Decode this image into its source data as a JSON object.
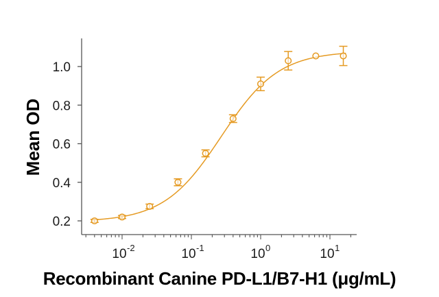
{
  "chart_data": {
    "type": "scatter",
    "title": "",
    "xlabel": "Recombinant Canine PD-L1/B7-H1 (μg/mL)",
    "ylabel": "Mean OD",
    "xscale": "log",
    "xlim": [
      0.0025,
      25
    ],
    "ylim": [
      0.15,
      1.12
    ],
    "x_ticks": [
      0.01,
      0.1,
      1,
      10
    ],
    "x_tick_labels": [
      {
        "base": "10",
        "exp": "-2"
      },
      {
        "base": "10",
        "exp": "-1"
      },
      {
        "base": "10",
        "exp": "0"
      },
      {
        "base": "10",
        "exp": "1"
      }
    ],
    "y_ticks": [
      0.2,
      0.4,
      0.6,
      0.8,
      1.0
    ],
    "y_tick_labels": [
      "0.2",
      "0.4",
      "0.6",
      "0.8",
      "1.0"
    ],
    "grid": false,
    "legend": null,
    "series": [
      {
        "name": "Mean OD",
        "color": "#E59A22",
        "marker": "open-circle",
        "fit": "4-parameter logistic curve",
        "x": [
          0.004,
          0.01,
          0.025,
          0.064,
          0.16,
          0.4,
          1.0,
          2.5,
          6.25,
          15.6
        ],
        "y": [
          0.2,
          0.22,
          0.275,
          0.4,
          0.55,
          0.73,
          0.91,
          1.03,
          1.055,
          1.055
        ],
        "error": [
          0.008,
          0.008,
          0.012,
          0.018,
          0.018,
          0.02,
          0.035,
          0.048,
          0.005,
          0.05
        ]
      }
    ]
  }
}
